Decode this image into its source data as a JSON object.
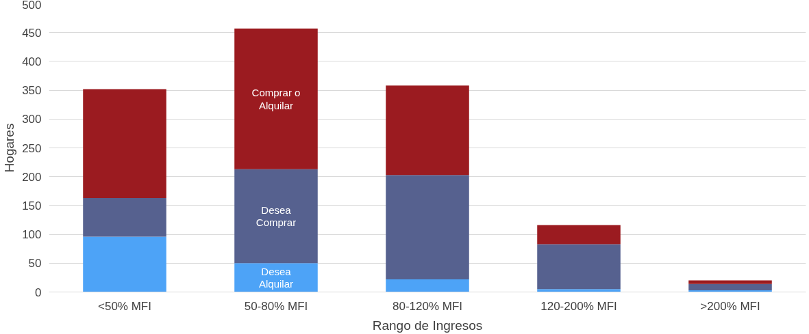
{
  "chart_data": {
    "type": "bar",
    "stacked": true,
    "xlabel": "Rango de Ingresos",
    "ylabel": "Hogares",
    "categories": [
      "<50% MFI",
      "50-80% MFI",
      "80-120% MFI",
      "120-200% MFI",
      ">200% MFI"
    ],
    "series": [
      {
        "name": "Desea Alquilar",
        "color": "#4da3f7",
        "values": [
          96,
          50,
          22,
          5,
          3
        ]
      },
      {
        "name": "Desea Comprar",
        "color": "#56618f",
        "values": [
          67,
          163,
          181,
          78,
          11
        ]
      },
      {
        "name": "Comprar o Alquilar",
        "color": "#9b1b20",
        "values": [
          189,
          244,
          155,
          33,
          6
        ]
      }
    ],
    "ylim": [
      0,
      500
    ],
    "yticks": [
      0,
      50,
      100,
      150,
      200,
      250,
      300,
      350,
      400,
      450,
      500
    ],
    "grid": "y",
    "legend": false
  }
}
